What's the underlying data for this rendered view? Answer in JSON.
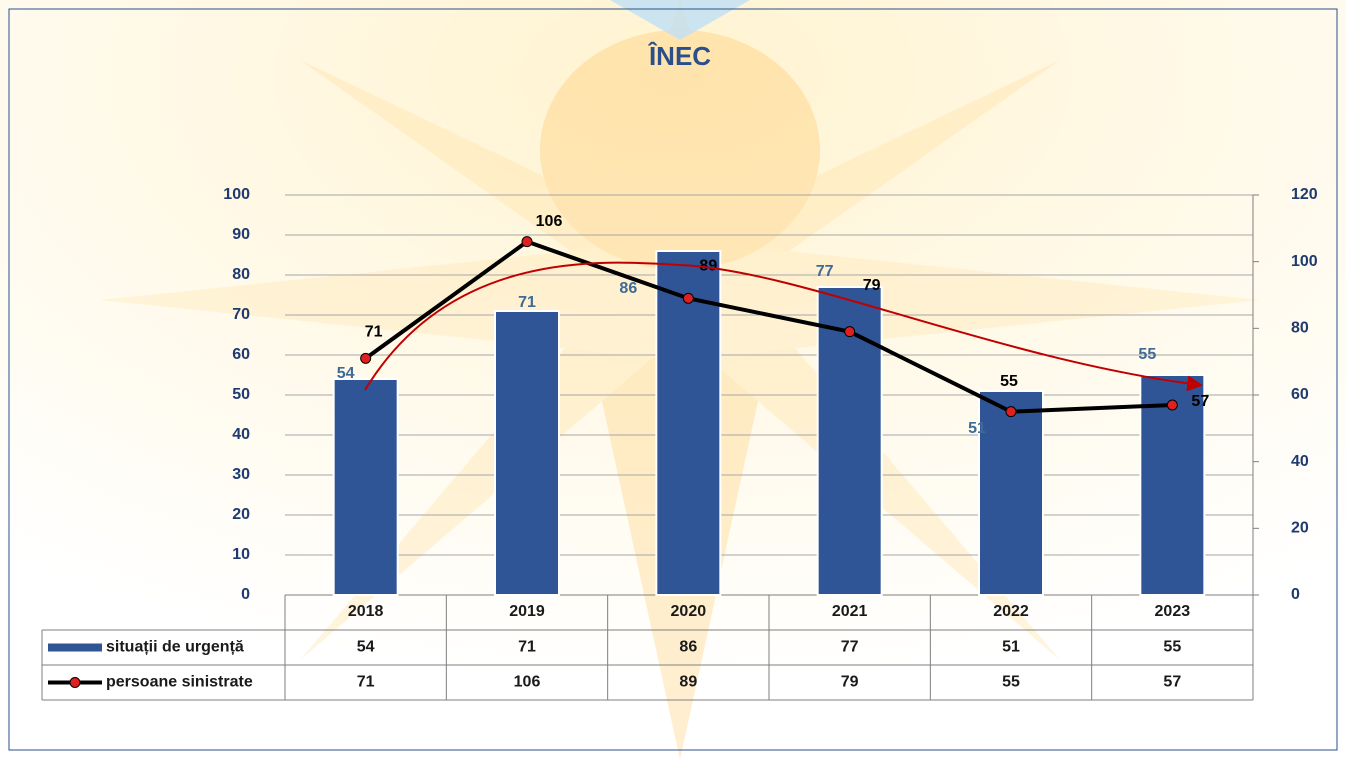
{
  "chart_data": {
    "type": "bar-line",
    "title": "ÎNEC",
    "categories": [
      "2018",
      "2019",
      "2020",
      "2021",
      "2022",
      "2023"
    ],
    "series": [
      {
        "name": "situații de urgență",
        "type": "bar",
        "color": "#2f5597",
        "values": [
          54,
          71,
          86,
          77,
          51,
          55
        ]
      },
      {
        "name": "persoane sinistrate",
        "type": "line",
        "axis": "y2",
        "color": "#000000",
        "marker_color": "#e02020",
        "values": [
          71,
          106,
          89,
          79,
          55,
          57
        ]
      }
    ],
    "ylim": [
      0,
      100
    ],
    "yticks": [
      0,
      10,
      20,
      30,
      40,
      50,
      60,
      70,
      80,
      90,
      100
    ],
    "y2lim": [
      0,
      120
    ],
    "y2ticks": [
      0,
      20,
      40,
      60,
      80,
      100,
      120
    ],
    "grid": true,
    "data_table": true
  }
}
